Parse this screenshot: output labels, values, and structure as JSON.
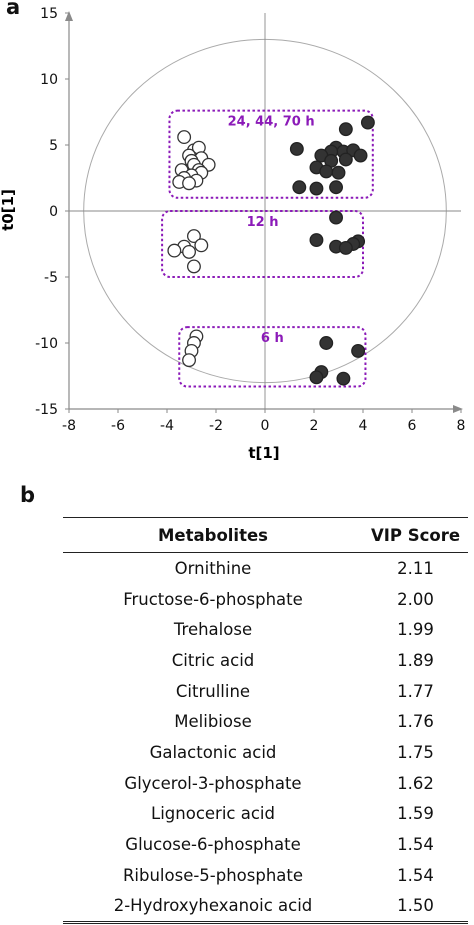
{
  "panel_labels": {
    "a": "a",
    "b": "b"
  },
  "chart_data": {
    "type": "scatter",
    "xlabel": "t[1]",
    "ylabel": "t0[1]",
    "xlim": [
      -8,
      8
    ],
    "ylim": [
      -15,
      15
    ],
    "xticks": [
      -8,
      -6,
      -4,
      -2,
      0,
      2,
      4,
      6,
      8
    ],
    "yticks": [
      15,
      10,
      5,
      0,
      -5,
      -10,
      -15
    ],
    "grid": false,
    "hotelling_ellipse": {
      "center": [
        0,
        0
      ],
      "rx": 7.4,
      "ry": 13.0
    },
    "groups": [
      {
        "label": "24, 44, 70 h",
        "box": {
          "x": [
            -3.9,
            4.4
          ],
          "y": [
            1.0,
            7.6
          ]
        }
      },
      {
        "label": "12 h",
        "box": {
          "x": [
            -4.2,
            4.0
          ],
          "y": [
            -5.0,
            0.0
          ]
        }
      },
      {
        "label": "6 h",
        "box": {
          "x": [
            -3.5,
            4.1
          ],
          "y": [
            -13.3,
            -8.8
          ]
        }
      }
    ],
    "series": [
      {
        "fill": "#ffffff",
        "stroke": "#333333",
        "points": [
          [
            -3.3,
            5.6
          ],
          [
            -2.9,
            4.6
          ],
          [
            -2.7,
            4.8
          ],
          [
            -3.1,
            4.2
          ],
          [
            -2.6,
            4.0
          ],
          [
            -3.0,
            3.8
          ],
          [
            -2.9,
            3.5
          ],
          [
            -2.3,
            3.5
          ],
          [
            -3.4,
            3.1
          ],
          [
            -2.7,
            3.1
          ],
          [
            -2.6,
            2.9
          ],
          [
            -3.0,
            2.7
          ],
          [
            -3.3,
            2.5
          ],
          [
            -2.8,
            2.3
          ],
          [
            -3.5,
            2.2
          ],
          [
            -3.1,
            2.1
          ],
          [
            -2.9,
            -1.9
          ],
          [
            -3.3,
            -2.7
          ],
          [
            -2.6,
            -2.6
          ],
          [
            -3.7,
            -3.0
          ],
          [
            -3.1,
            -3.1
          ],
          [
            -2.9,
            -4.2
          ],
          [
            -2.8,
            -9.5
          ],
          [
            -2.9,
            -10.0
          ],
          [
            -3.0,
            -10.6
          ],
          [
            -3.1,
            -11.3
          ]
        ]
      },
      {
        "fill": "#333333",
        "stroke": "#222222",
        "points": [
          [
            4.2,
            6.7
          ],
          [
            3.3,
            6.2
          ],
          [
            1.3,
            4.7
          ],
          [
            2.9,
            4.8
          ],
          [
            3.2,
            4.5
          ],
          [
            3.6,
            4.6
          ],
          [
            2.7,
            4.5
          ],
          [
            2.3,
            4.2
          ],
          [
            2.7,
            3.8
          ],
          [
            3.3,
            3.9
          ],
          [
            3.9,
            4.2
          ],
          [
            2.1,
            3.3
          ],
          [
            2.5,
            3.0
          ],
          [
            3.0,
            2.9
          ],
          [
            1.4,
            1.8
          ],
          [
            2.1,
            1.7
          ],
          [
            2.9,
            1.8
          ],
          [
            2.9,
            -0.5
          ],
          [
            2.1,
            -2.2
          ],
          [
            3.8,
            -2.3
          ],
          [
            3.6,
            -2.5
          ],
          [
            2.9,
            -2.7
          ],
          [
            3.3,
            -2.8
          ],
          [
            2.5,
            -10.0
          ],
          [
            3.8,
            -10.6
          ],
          [
            2.3,
            -12.2
          ],
          [
            2.1,
            -12.6
          ],
          [
            3.2,
            -12.7
          ]
        ]
      }
    ]
  },
  "table": {
    "headers": {
      "name": "Metabolites",
      "vip": "VIP Score"
    },
    "rows": [
      {
        "name": "Ornithine",
        "vip": "2.11"
      },
      {
        "name": "Fructose-6-phosphate",
        "vip": "2.00"
      },
      {
        "name": "Trehalose",
        "vip": "1.99"
      },
      {
        "name": "Citric acid",
        "vip": "1.89"
      },
      {
        "name": "Citrulline",
        "vip": "1.77"
      },
      {
        "name": "Melibiose",
        "vip": "1.76"
      },
      {
        "name": "Galactonic acid",
        "vip": "1.75"
      },
      {
        "name": "Glycerol-3-phosphate",
        "vip": "1.62"
      },
      {
        "name": "Lignoceric acid",
        "vip": "1.59"
      },
      {
        "name": "Glucose-6-phosphate",
        "vip": "1.54"
      },
      {
        "name": "Ribulose-5-phosphate",
        "vip": "1.54"
      },
      {
        "name": "2-Hydroxyhexanoic acid",
        "vip": "1.50"
      }
    ]
  }
}
